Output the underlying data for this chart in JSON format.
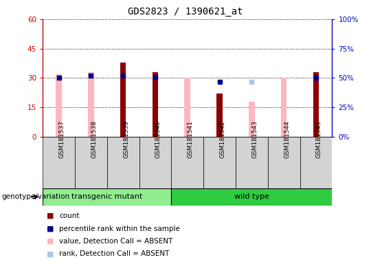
{
  "title": "GDS2823 / 1390621_at",
  "samples": [
    "GSM181537",
    "GSM181538",
    "GSM181539",
    "GSM181540",
    "GSM181541",
    "GSM181542",
    "GSM181543",
    "GSM181544",
    "GSM181545"
  ],
  "count_values": [
    0,
    0,
    38,
    33,
    0,
    22,
    0,
    0,
    33
  ],
  "absent_value_bars": [
    32,
    33,
    0,
    0,
    30,
    0,
    18,
    30,
    0
  ],
  "percentile_rank": [
    50,
    52,
    52,
    51,
    null,
    47,
    null,
    null,
    50
  ],
  "absent_rank": [
    null,
    null,
    null,
    null,
    null,
    null,
    47,
    null,
    null
  ],
  "ylim_left": [
    0,
    60
  ],
  "ylim_right": [
    0,
    100
  ],
  "yticks_left": [
    0,
    15,
    30,
    45,
    60
  ],
  "yticks_right": [
    0,
    25,
    50,
    75,
    100
  ],
  "ytick_labels_left": [
    "0",
    "15",
    "30",
    "45",
    "60"
  ],
  "ytick_labels_right": [
    "0%",
    "25%",
    "50%",
    "75%",
    "100%"
  ],
  "group_labels": [
    "transgenic mutant",
    "wild type"
  ],
  "group_colors": [
    "#90ee90",
    "#2ecc40"
  ],
  "count_color": "#8b0000",
  "absent_value_color": "#ffb6c1",
  "percentile_rank_color": "#00008b",
  "absent_rank_color": "#aec6e8",
  "bg_color": "#d3d3d3",
  "plot_bg": "#ffffff",
  "left_axis_color": "#cc0000",
  "right_axis_color": "#0000cc",
  "bar_width": 0.18,
  "genotype_label": "genotype/variation"
}
